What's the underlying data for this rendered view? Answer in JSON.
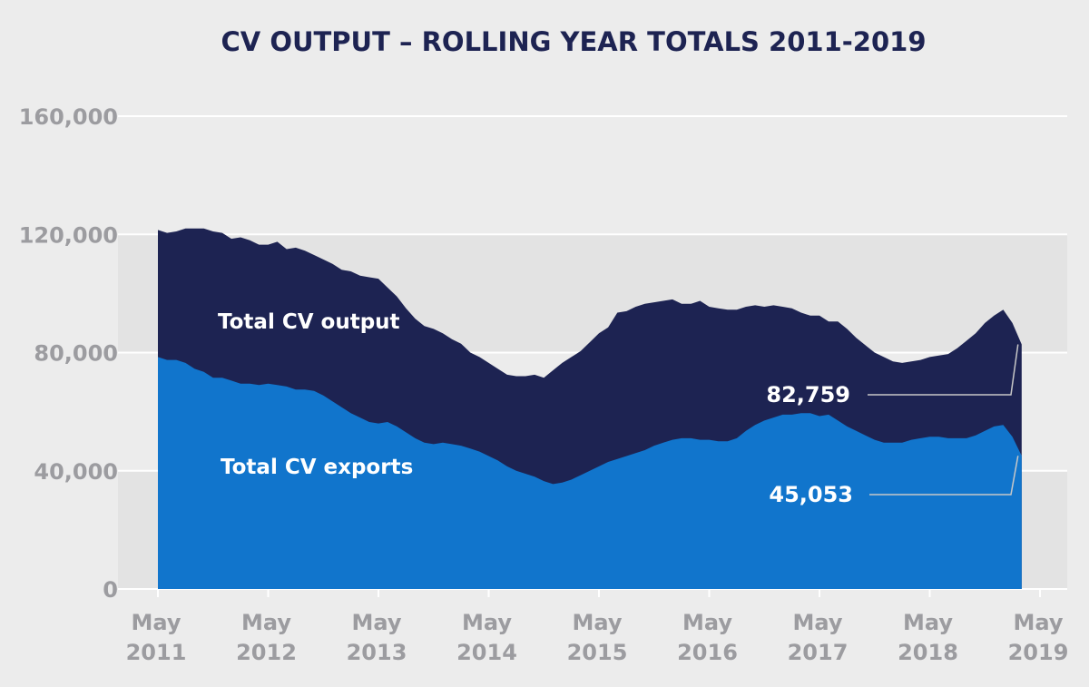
{
  "chart_data": {
    "type": "area",
    "title": "CV OUTPUT – ROLLING YEAR TOTALS 2011-2019",
    "xlabel": "",
    "ylabel": "",
    "ylim": [
      0,
      160000
    ],
    "yticks": [
      0,
      40000,
      80000,
      120000,
      160000
    ],
    "ytick_labels": [
      "0",
      "40,000",
      "80,000",
      "120,000",
      "160,000"
    ],
    "xtick_labels": [
      [
        "May",
        "2011"
      ],
      [
        "May",
        "2012"
      ],
      [
        "May",
        "2013"
      ],
      [
        "May",
        "2014"
      ],
      [
        "May",
        "2015"
      ],
      [
        "May",
        "2016"
      ],
      [
        "May",
        "2017"
      ],
      [
        "May",
        "2018"
      ],
      [
        "May",
        "2019"
      ]
    ],
    "grid": true,
    "colors": {
      "background": "#ececec",
      "band": "#e3e3e3",
      "output": "#1d2352",
      "exports": "#1175cc",
      "grid": "#ffffff",
      "leader": "#c8c8c8"
    },
    "series": [
      {
        "name": "Total CV output",
        "start": "2011-05",
        "values": [
          121500,
          120500,
          121000,
          122000,
          122000,
          122000,
          121000,
          120500,
          118500,
          119000,
          118000,
          116500,
          116500,
          117500,
          115000,
          115500,
          114500,
          113000,
          111500,
          110000,
          108000,
          107500,
          106000,
          105500,
          105000,
          102000,
          99000,
          95000,
          91500,
          89000,
          88000,
          86500,
          84500,
          83000,
          80000,
          78500,
          76500,
          74500,
          72500,
          72000,
          72000,
          72500,
          71500,
          74000,
          76500,
          78500,
          80500,
          83500,
          86500,
          88500,
          93500,
          94000,
          95500,
          96500,
          97000,
          97500,
          98000,
          96500,
          96500,
          97500,
          95500,
          95000,
          94500,
          94500,
          95500,
          96000,
          95500,
          96000,
          95500,
          95000,
          93500,
          92500,
          92500,
          90500,
          90500,
          88000,
          85000,
          82500,
          80000,
          78500,
          77000,
          76500,
          77000,
          77500,
          78500,
          79000,
          79500,
          81500,
          84000,
          86500,
          90000,
          92500,
          94500,
          90000,
          82759
        ],
        "end_label": "82,759"
      },
      {
        "name": "Total CV exports",
        "start": "2011-05",
        "values": [
          78500,
          77500,
          77500,
          76500,
          74500,
          73500,
          71500,
          71500,
          70500,
          69500,
          69500,
          69000,
          69500,
          69000,
          68500,
          67500,
          67500,
          67000,
          65500,
          63500,
          61500,
          59500,
          58000,
          56500,
          56000,
          56500,
          55000,
          53000,
          51000,
          49500,
          49000,
          49500,
          49000,
          48500,
          47500,
          46500,
          45000,
          43500,
          41500,
          40000,
          39000,
          38000,
          36500,
          35500,
          36000,
          37000,
          38500,
          40000,
          41500,
          43000,
          44000,
          45000,
          46000,
          47000,
          48500,
          49500,
          50500,
          51000,
          51000,
          50500,
          50500,
          50000,
          50000,
          51000,
          53500,
          55500,
          57000,
          58000,
          59000,
          59000,
          59500,
          59500,
          58500,
          59000,
          57000,
          55000,
          53500,
          52000,
          50500,
          49500,
          49500,
          49500,
          50500,
          51000,
          51500,
          51500,
          51000,
          51000,
          51000,
          52000,
          53500,
          55000,
          55500,
          51500,
          45053
        ],
        "end_label": "45,053"
      }
    ]
  }
}
